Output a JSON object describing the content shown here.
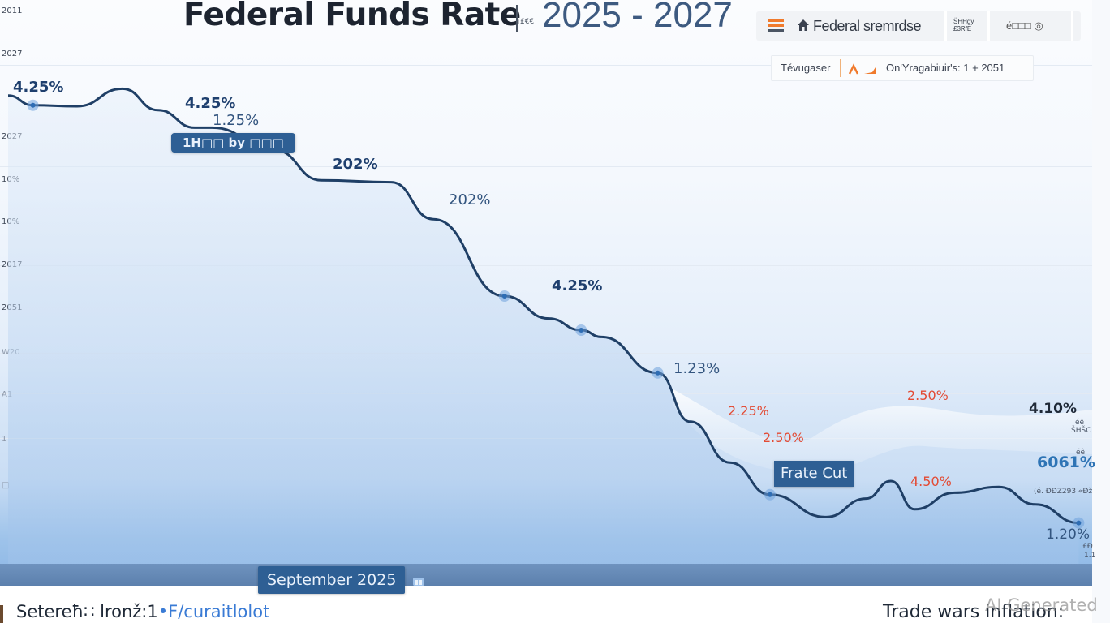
{
  "header": {
    "title": "Federal Funds Rate",
    "separator_glyph": "£€€",
    "subtitle": "2025 - 2027"
  },
  "toolbar": {
    "menu_icon": "hamburger-icon",
    "home_icon": "home-icon",
    "label": "Federal sremrdse",
    "small_label": "S̈HHgy £3RfE",
    "tool_label": "é□□□ ◎",
    "tool_icon": "settings-icon"
  },
  "legend": {
    "label": "Tévugaser",
    "series_icon": "trend-line-icon",
    "series_label": "On'Yragabiuir's: 1 + 2051"
  },
  "colors": {
    "line": "#1f3f66",
    "label_blue": "#1e3f6e",
    "label_red": "#e34b34",
    "accent_orange": "#f07a2c",
    "tag_bg": "#2e5f94"
  },
  "chart_data": {
    "type": "line",
    "title": "Federal Funds Rate",
    "subtitle": "2025 - 2027",
    "xlabel": "",
    "ylabel": "",
    "y_tick_labels": [
      "2011",
      "2027",
      "2027",
      "10%",
      "10%",
      "2017",
      "2051",
      "W20",
      "A1",
      "1",
      "□"
    ],
    "x_range": [
      0,
      1
    ],
    "y_range": [
      0,
      5
    ],
    "grid": true,
    "legend_position": "top-right",
    "series": [
      {
        "name": "Federal Funds Rate",
        "color": "#1f3f66",
        "points": [
          [
            0.0,
            4.81
          ],
          [
            0.023,
            4.71
          ],
          [
            0.064,
            4.7
          ],
          [
            0.106,
            4.88
          ],
          [
            0.139,
            4.66
          ],
          [
            0.173,
            4.48
          ],
          [
            0.189,
            4.48
          ],
          [
            0.247,
            4.25
          ],
          [
            0.29,
            3.94
          ],
          [
            0.355,
            3.92
          ],
          [
            0.394,
            3.54
          ],
          [
            0.46,
            2.75
          ],
          [
            0.501,
            2.52
          ],
          [
            0.531,
            2.4
          ],
          [
            0.55,
            2.33
          ],
          [
            0.602,
            1.96
          ],
          [
            0.632,
            1.46
          ],
          [
            0.669,
            1.04
          ],
          [
            0.706,
            0.71
          ],
          [
            0.758,
            0.48
          ],
          [
            0.795,
            0.67
          ],
          [
            0.818,
            0.85
          ],
          [
            0.84,
            0.56
          ],
          [
            0.877,
            0.73
          ],
          [
            0.918,
            0.79
          ],
          [
            0.952,
            0.61
          ],
          [
            0.992,
            0.42
          ]
        ],
        "markers": [
          1,
          11,
          13,
          15,
          18,
          26
        ]
      }
    ],
    "data_labels": [
      {
        "text": "4.25%",
        "style": "blue-bold",
        "anchor_point": 1
      },
      {
        "text": "4.25%",
        "style": "blue-bold",
        "anchor_point": 5
      },
      {
        "text": "1.25%",
        "style": "blue",
        "anchor_point": 6
      },
      {
        "text": "202%",
        "style": "blue-bold",
        "anchor_point": 8
      },
      {
        "text": "202%",
        "style": "blue",
        "anchor_point": 11
      },
      {
        "text": "4.25%",
        "style": "blue-bold",
        "anchor_point": 12
      },
      {
        "text": "1.23%",
        "style": "blue",
        "anchor_point": 15
      },
      {
        "text": "2.25%",
        "style": "red",
        "anchor_point": 16
      },
      {
        "text": "2.50%",
        "style": "red",
        "anchor_point": 17
      },
      {
        "text": "2.50%",
        "style": "red",
        "anchor_point": 21
      },
      {
        "text": "4.50%",
        "style": "red",
        "anchor_point": 22
      },
      {
        "text": "4.10%",
        "style": "dark",
        "anchor_point": 26
      },
      {
        "text": "6061%",
        "style": "mid",
        "anchor_point": 26
      },
      {
        "text": "1.20%",
        "style": "blue",
        "anchor_point": 26
      }
    ],
    "annotations": [
      {
        "text": "1H□□ by □□□",
        "kind": "tag"
      },
      {
        "text": "Frate Cut",
        "kind": "tag"
      },
      {
        "text": "September 2025",
        "kind": "x-marker"
      }
    ],
    "right_small_labels": [
      "éê",
      "ŠHŠC",
      "éê",
      "(é. ĐĐZ293 «Đž",
      "£Đ",
      "1.1"
    ]
  },
  "footer": {
    "left_text": "Setereħ∷ lronž:1",
    "left_link": "•F/curaitlolot",
    "right_text": "Trade wars inflation:",
    "watermark": "AI Generated",
    "x_marker_icon": "calendar-icon"
  }
}
